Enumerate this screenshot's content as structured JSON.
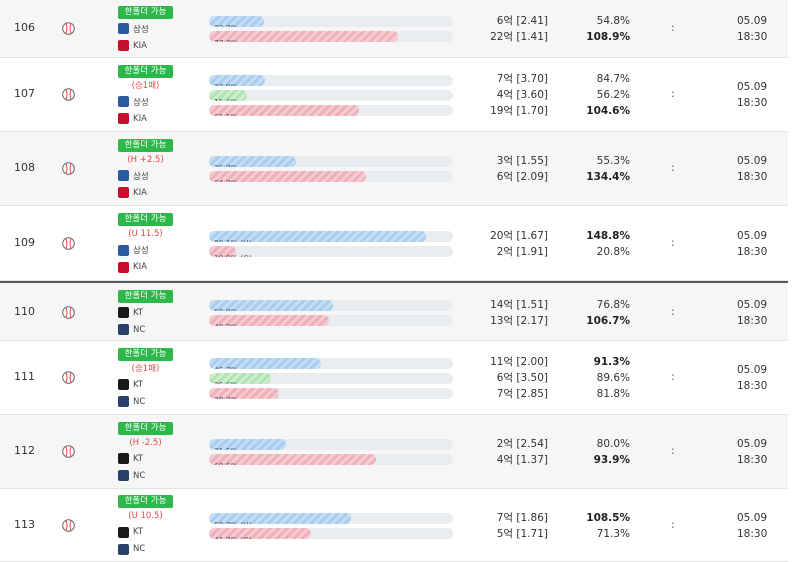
{
  "rows": [
    {
      "num": "106",
      "badge": "한폴더 가능",
      "cond": "",
      "shade": true,
      "sep": false,
      "teams": [
        {
          "name": "삼성",
          "logo": "samsung"
        },
        {
          "name": "KIA",
          "logo": "kia"
        }
      ],
      "bars": [
        {
          "label": "22.7%",
          "pct": 22.7,
          "color": "blue"
        },
        {
          "label": "77.3%",
          "pct": 77.3,
          "color": "red"
        }
      ],
      "amounts": [
        "6억 [2.41]",
        "22억 [1.41]"
      ],
      "rates": [
        "54.8%",
        "108.9%"
      ],
      "bold": [
        1
      ],
      "colon": ":",
      "date": "05.09",
      "time": "18:30"
    },
    {
      "num": "107",
      "badge": "한폴더 가능",
      "cond": "(승1패)",
      "shade": false,
      "sep": false,
      "teams": [
        {
          "name": "삼성",
          "logo": "samsung"
        },
        {
          "name": "KIA",
          "logo": "kia"
        }
      ],
      "bars": [
        {
          "label": "22.9%",
          "pct": 22.9,
          "color": "blue"
        },
        {
          "label": "15.6%",
          "pct": 15.6,
          "color": "green"
        },
        {
          "label": "61.5%",
          "pct": 61.5,
          "color": "red"
        }
      ],
      "amounts": [
        "7억 [3.70]",
        "4억 [3.60]",
        "19억 [1.70]"
      ],
      "rates": [
        "84.7%",
        "56.2%",
        "104.6%"
      ],
      "bold": [
        2
      ],
      "colon": ":",
      "date": "05.09",
      "time": "18:30"
    },
    {
      "num": "108",
      "badge": "한폴더 가능",
      "cond": "(H +2.5)",
      "shade": true,
      "sep": false,
      "teams": [
        {
          "name": "삼성",
          "logo": "samsung"
        },
        {
          "name": "KIA",
          "logo": "kia"
        }
      ],
      "bars": [
        {
          "label": "35.7%",
          "pct": 35.7,
          "color": "blue"
        },
        {
          "label": "64.3%",
          "pct": 64.3,
          "color": "red"
        }
      ],
      "amounts": [
        "3억 [1.55]",
        "6억 [2.09]"
      ],
      "rates": [
        "55.3%",
        "134.4%"
      ],
      "bold": [
        1
      ],
      "colon": ":",
      "date": "05.09",
      "time": "18:30"
    },
    {
      "num": "109",
      "badge": "한폴더 가능",
      "cond": "(U 11.5)",
      "shade": false,
      "sep": false,
      "teams": [
        {
          "name": "삼성",
          "logo": "samsung"
        },
        {
          "name": "KIA",
          "logo": "kia"
        }
      ],
      "bars": [
        {
          "label": "89.1% (U)",
          "pct": 89.1,
          "color": "blue"
        },
        {
          "label": "10.9% (O)",
          "pct": 10.9,
          "color": "red"
        }
      ],
      "amounts": [
        "20억 [1.67]",
        "2억 [1.91]"
      ],
      "rates": [
        "148.8%",
        "20.8%"
      ],
      "bold": [
        0
      ],
      "colon": ":",
      "date": "05.09",
      "time": "18:30"
    },
    {
      "num": "110",
      "badge": "한폴더 가능",
      "cond": "",
      "shade": true,
      "sep": true,
      "teams": [
        {
          "name": "KT",
          "logo": "kt"
        },
        {
          "name": "NC",
          "logo": "nc"
        }
      ],
      "bars": [
        {
          "label": "50.8%",
          "pct": 50.8,
          "color": "blue"
        },
        {
          "label": "49.2%",
          "pct": 49.2,
          "color": "red"
        }
      ],
      "amounts": [
        "14억 [1.51]",
        "13억 [2.17]"
      ],
      "rates": [
        "76.8%",
        "106.7%"
      ],
      "bold": [
        1
      ],
      "colon": ":",
      "date": "05.09",
      "time": "18:30"
    },
    {
      "num": "111",
      "badge": "한폴더 가능",
      "cond": "(승1패)",
      "shade": false,
      "sep": false,
      "teams": [
        {
          "name": "KT",
          "logo": "kt"
        },
        {
          "name": "NC",
          "logo": "nc"
        }
      ],
      "bars": [
        {
          "label": "45.7%",
          "pct": 45.7,
          "color": "blue"
        },
        {
          "label": "25.6%",
          "pct": 25.6,
          "color": "green"
        },
        {
          "label": "28.7%",
          "pct": 28.7,
          "color": "red"
        }
      ],
      "amounts": [
        "11억 [2.00]",
        "6억 [3.50]",
        "7억 [2.85]"
      ],
      "rates": [
        "91.3%",
        "89.6%",
        "81.8%"
      ],
      "bold": [
        0
      ],
      "colon": ":",
      "date": "05.09",
      "time": "18:30"
    },
    {
      "num": "112",
      "badge": "한폴더 가능",
      "cond": "(H -2.5)",
      "shade": true,
      "sep": false,
      "teams": [
        {
          "name": "KT",
          "logo": "kt"
        },
        {
          "name": "NC",
          "logo": "nc"
        }
      ],
      "bars": [
        {
          "label": "31.5%",
          "pct": 31.5,
          "color": "blue"
        },
        {
          "label": "68.5%",
          "pct": 68.5,
          "color": "red"
        }
      ],
      "amounts": [
        "2억 [2.54]",
        "4억 [1.37]"
      ],
      "rates": [
        "80.0%",
        "93.9%"
      ],
      "bold": [
        1
      ],
      "colon": ":",
      "date": "05.09",
      "time": "18:30"
    },
    {
      "num": "113",
      "badge": "한폴더 가능",
      "cond": "(U 10.5)",
      "shade": false,
      "sep": false,
      "teams": [
        {
          "name": "KT",
          "logo": "kt"
        },
        {
          "name": "NC",
          "logo": "nc"
        }
      ],
      "bars": [
        {
          "label": "58.3% (U)",
          "pct": 58.3,
          "color": "blue"
        },
        {
          "label": "41.7% (O)",
          "pct": 41.7,
          "color": "red"
        }
      ],
      "amounts": [
        "7억 [1.86]",
        "5억 [1.71]"
      ],
      "rates": [
        "108.5%",
        "71.3%"
      ],
      "bold": [
        0
      ],
      "colon": ":",
      "date": "05.09",
      "time": "18:30"
    }
  ]
}
